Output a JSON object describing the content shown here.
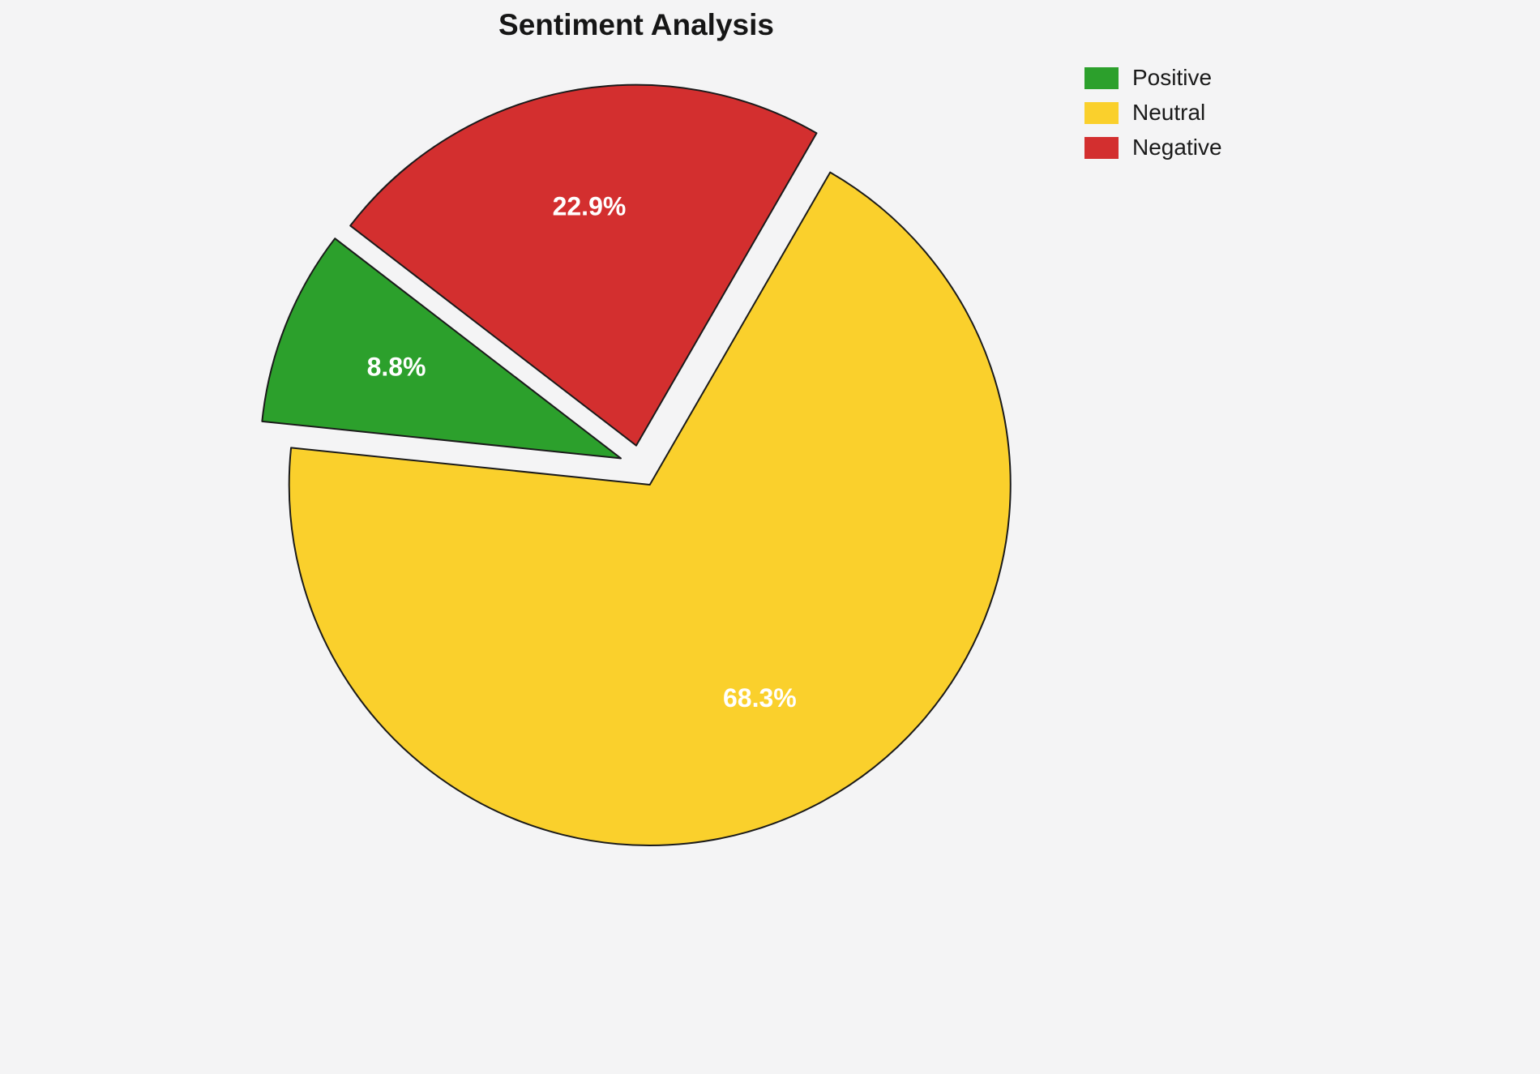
{
  "chart_data": {
    "type": "pie",
    "title": "Sentiment Analysis",
    "labels": [
      "Positive",
      "Neutral",
      "Negative"
    ],
    "values": [
      8.8,
      68.3,
      22.9
    ],
    "slice_labels": [
      "8.8%",
      "68.3%",
      "22.9%"
    ],
    "colors": [
      "#2ca02c",
      "#fad02c",
      "#d32f2f"
    ],
    "stroke_color": "#1a1a1a",
    "label_color": "#ffffff",
    "start_angle_deg": 60,
    "counterclockwise": true,
    "draw_order": [
      2,
      0,
      1
    ],
    "explode": 0.058,
    "legend_position": "upper right",
    "background": "#f4f4f5"
  }
}
